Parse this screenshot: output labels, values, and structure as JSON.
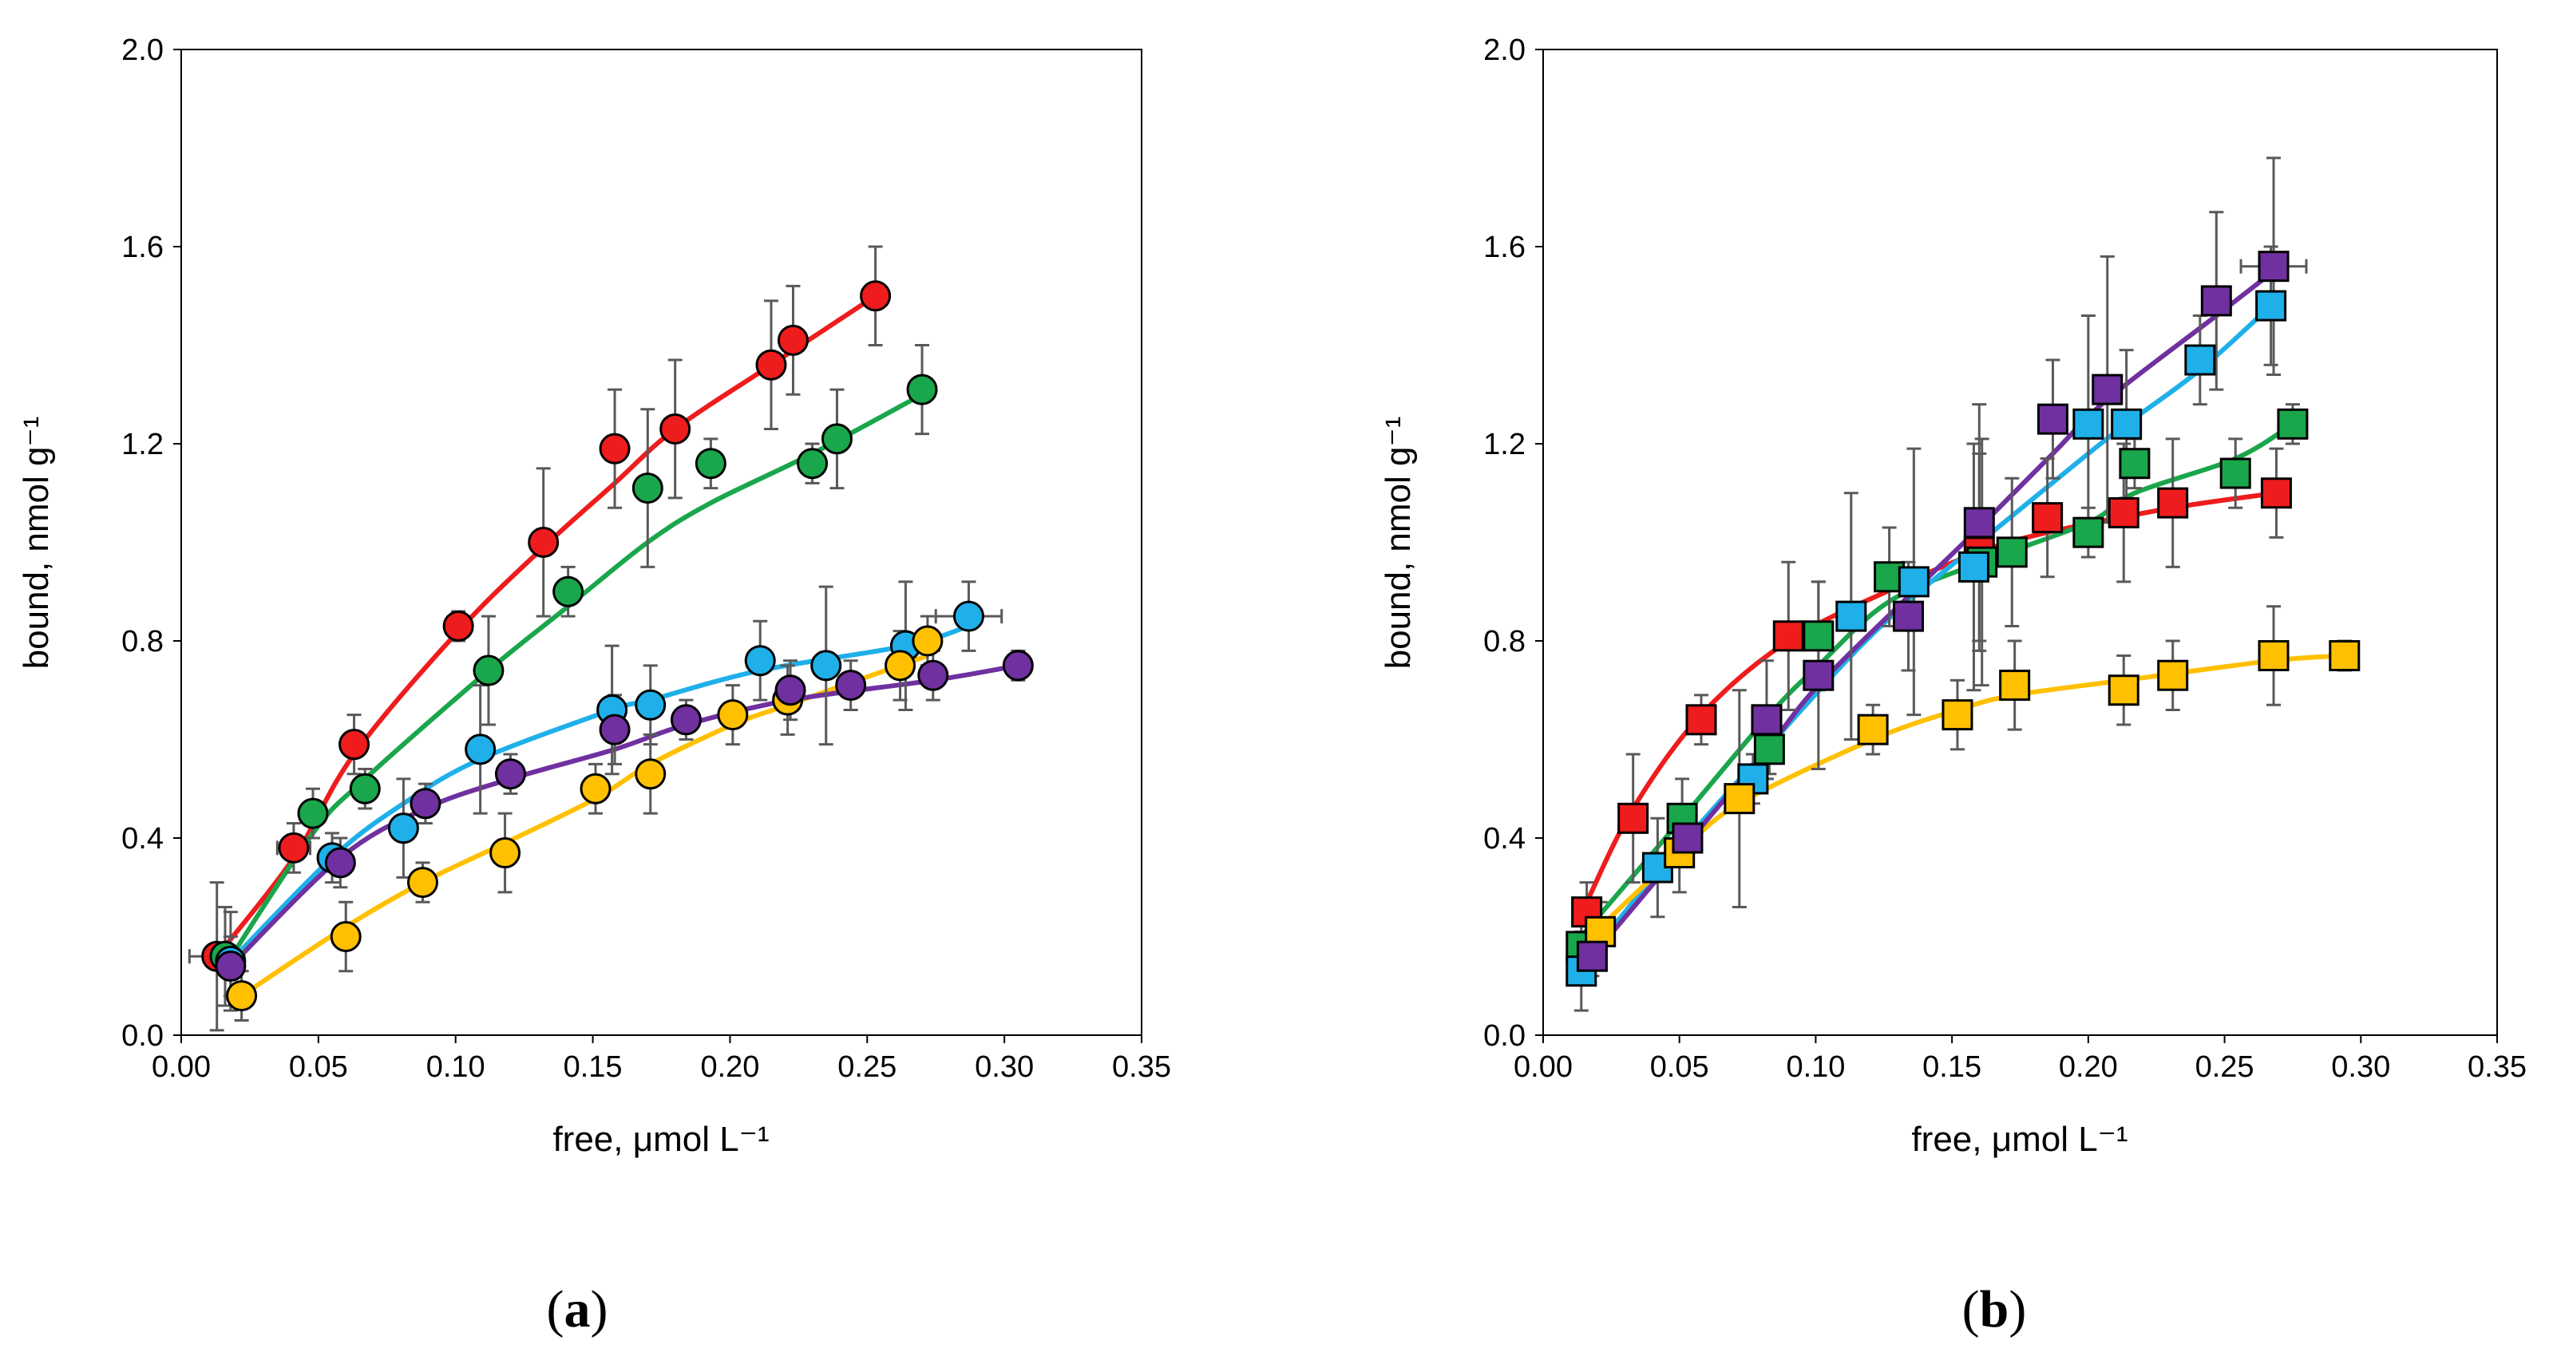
{
  "colors": {
    "red": "#ee1c1c",
    "green": "#1aa64b",
    "blue": "#1fb0ea",
    "purple": "#7030a0",
    "yellow": "#ffc000",
    "errorbar": "#595959"
  },
  "chart_data": [
    {
      "id": "a",
      "type": "scatter",
      "marker": "circle",
      "panel_label": "(a)",
      "panel_letter": "a",
      "xlabel": "free, μmol L⁻¹",
      "ylabel": "bound, nmol g⁻¹",
      "xlim": [
        0,
        0.35
      ],
      "ylim": [
        0,
        2.0
      ],
      "xticks": [
        "0.00",
        "0.05",
        "0.10",
        "0.15",
        "0.20",
        "0.25",
        "0.30",
        "0.35"
      ],
      "yticks": [
        "0.0",
        "0.4",
        "0.8",
        "1.2",
        "1.6",
        "2.0"
      ],
      "series": [
        {
          "name": "red",
          "color": "#ee1c1c",
          "points": [
            [
              0.013,
              0.16,
              0.01,
              0.15
            ],
            [
              0.041,
              0.38,
              0.006,
              0.05
            ],
            [
              0.063,
              0.59,
              0,
              0.06
            ],
            [
              0.101,
              0.83,
              0,
              0.03
            ],
            [
              0.132,
              1.0,
              0,
              0.15
            ],
            [
              0.158,
              1.19,
              0,
              0.12
            ],
            [
              0.18,
              1.23,
              0,
              0.14
            ],
            [
              0.215,
              1.36,
              0,
              0.13
            ],
            [
              0.223,
              1.41,
              0,
              0.11
            ],
            [
              0.253,
              1.5,
              0,
              0.1
            ]
          ],
          "curve": [
            [
              0.013,
              0.16
            ],
            [
              0.041,
              0.36
            ],
            [
              0.063,
              0.57
            ],
            [
              0.101,
              0.82
            ],
            [
              0.132,
              0.99
            ],
            [
              0.158,
              1.12
            ],
            [
              0.18,
              1.23
            ],
            [
              0.215,
              1.36
            ],
            [
              0.253,
              1.5
            ]
          ]
        },
        {
          "name": "green",
          "color": "#1aa64b",
          "points": [
            [
              0.016,
              0.16,
              0,
              0.1
            ],
            [
              0.048,
              0.45,
              0,
              0.05
            ],
            [
              0.067,
              0.5,
              0,
              0.04
            ],
            [
              0.112,
              0.74,
              0,
              0.11
            ],
            [
              0.141,
              0.9,
              0,
              0.05
            ],
            [
              0.17,
              1.11,
              0,
              0.16
            ],
            [
              0.193,
              1.16,
              0,
              0.05
            ],
            [
              0.23,
              1.16,
              0,
              0.04
            ],
            [
              0.239,
              1.21,
              0,
              0.1
            ],
            [
              0.27,
              1.31,
              0,
              0.09
            ]
          ],
          "curve": [
            [
              0.016,
              0.14
            ],
            [
              0.048,
              0.41
            ],
            [
              0.067,
              0.52
            ],
            [
              0.112,
              0.74
            ],
            [
              0.141,
              0.87
            ],
            [
              0.17,
              1.0
            ],
            [
              0.193,
              1.08
            ],
            [
              0.23,
              1.18
            ],
            [
              0.27,
              1.3
            ]
          ]
        },
        {
          "name": "blue",
          "color": "#1fb0ea",
          "points": [
            [
              0.018,
              0.15,
              0,
              0.1
            ],
            [
              0.055,
              0.36,
              0,
              0.05
            ],
            [
              0.081,
              0.42,
              0,
              0.1
            ],
            [
              0.109,
              0.58,
              0,
              0.13
            ],
            [
              0.157,
              0.66,
              0,
              0.13
            ],
            [
              0.171,
              0.67,
              0,
              0.08
            ],
            [
              0.211,
              0.76,
              0,
              0.08
            ],
            [
              0.235,
              0.75,
              0,
              0.16
            ],
            [
              0.264,
              0.79,
              0,
              0.13
            ],
            [
              0.287,
              0.85,
              0.012,
              0.07
            ]
          ],
          "curve": [
            [
              0.018,
              0.15
            ],
            [
              0.055,
              0.36
            ],
            [
              0.081,
              0.47
            ],
            [
              0.109,
              0.56
            ],
            [
              0.157,
              0.66
            ],
            [
              0.171,
              0.68
            ],
            [
              0.211,
              0.74
            ],
            [
              0.264,
              0.79
            ],
            [
              0.287,
              0.83
            ]
          ]
        },
        {
          "name": "yellow",
          "color": "#ffc000",
          "points": [
            [
              0.022,
              0.08,
              0,
              0.05
            ],
            [
              0.06,
              0.2,
              0,
              0.07
            ],
            [
              0.088,
              0.31,
              0,
              0.04
            ],
            [
              0.118,
              0.37,
              0,
              0.08
            ],
            [
              0.151,
              0.5,
              0,
              0.05
            ],
            [
              0.171,
              0.53,
              0,
              0.08
            ],
            [
              0.201,
              0.65,
              0,
              0.06
            ],
            [
              0.221,
              0.68,
              0,
              0.07
            ],
            [
              0.262,
              0.75,
              0,
              0.07
            ],
            [
              0.272,
              0.8,
              0,
              0.05
            ]
          ],
          "curve": [
            [
              0.022,
              0.08
            ],
            [
              0.06,
              0.22
            ],
            [
              0.088,
              0.31
            ],
            [
              0.118,
              0.39
            ],
            [
              0.151,
              0.48
            ],
            [
              0.171,
              0.55
            ],
            [
              0.201,
              0.63
            ],
            [
              0.221,
              0.67
            ],
            [
              0.272,
              0.77
            ]
          ]
        },
        {
          "name": "purple",
          "color": "#7030a0",
          "points": [
            [
              0.018,
              0.14,
              0,
              0.06
            ],
            [
              0.058,
              0.35,
              0,
              0.05
            ],
            [
              0.089,
              0.47,
              0,
              0.04
            ],
            [
              0.12,
              0.53,
              0,
              0.04
            ],
            [
              0.158,
              0.62,
              0,
              0.07
            ],
            [
              0.184,
              0.64,
              0,
              0.04
            ],
            [
              0.222,
              0.7,
              0,
              0.06
            ],
            [
              0.244,
              0.71,
              0,
              0.05
            ],
            [
              0.274,
              0.73,
              0,
              0.05
            ],
            [
              0.305,
              0.75,
              0,
              0.03
            ]
          ],
          "curve": [
            [
              0.018,
              0.14
            ],
            [
              0.058,
              0.36
            ],
            [
              0.089,
              0.46
            ],
            [
              0.12,
              0.52
            ],
            [
              0.158,
              0.58
            ],
            [
              0.184,
              0.63
            ],
            [
              0.222,
              0.68
            ],
            [
              0.274,
              0.72
            ],
            [
              0.305,
              0.75
            ]
          ]
        }
      ]
    },
    {
      "id": "b",
      "type": "scatter",
      "marker": "square",
      "panel_label": "(b)",
      "panel_letter": "b",
      "xlabel": "free, μmol L⁻¹",
      "ylabel": "bound, nmol g⁻¹",
      "xlim": [
        0,
        0.35
      ],
      "ylim": [
        0,
        2.0
      ],
      "xticks": [
        "0.00",
        "0.05",
        "0.10",
        "0.15",
        "0.20",
        "0.25",
        "0.30",
        "0.35"
      ],
      "yticks": [
        "0.0",
        "0.4",
        "0.8",
        "1.2",
        "1.6",
        "2.0"
      ],
      "series": [
        {
          "name": "red",
          "color": "#ee1c1c",
          "points": [
            [
              0.016,
              0.25,
              0,
              0.06
            ],
            [
              0.033,
              0.44,
              0,
              0.13
            ],
            [
              0.058,
              0.64,
              0,
              0.05
            ],
            [
              0.09,
              0.81,
              0,
              0.15
            ],
            [
              0.16,
              0.98,
              0,
              0.2
            ],
            [
              0.185,
              1.05,
              0,
              0.12
            ],
            [
              0.213,
              1.06,
              0,
              0.14
            ],
            [
              0.231,
              1.08,
              0,
              0.13
            ],
            [
              0.269,
              1.1,
              0,
              0.09
            ]
          ],
          "curve": [
            [
              0.016,
              0.27
            ],
            [
              0.033,
              0.46
            ],
            [
              0.058,
              0.65
            ],
            [
              0.09,
              0.8
            ],
            [
              0.13,
              0.91
            ],
            [
              0.16,
              0.98
            ],
            [
              0.185,
              1.02
            ],
            [
              0.231,
              1.07
            ],
            [
              0.269,
              1.1
            ]
          ]
        },
        {
          "name": "green",
          "color": "#1aa64b",
          "points": [
            [
              0.014,
              0.18,
              0,
              0.05
            ],
            [
              0.051,
              0.44,
              0,
              0.08
            ],
            [
              0.083,
              0.58,
              0,
              0.05
            ],
            [
              0.101,
              0.81,
              0,
              0.11
            ],
            [
              0.127,
              0.93,
              0,
              0.1
            ],
            [
              0.161,
              0.96,
              0,
              0.25
            ],
            [
              0.172,
              0.98,
              0,
              0.15
            ],
            [
              0.2,
              1.02,
              0,
              0.05
            ],
            [
              0.217,
              1.16,
              0,
              0.05
            ],
            [
              0.254,
              1.14,
              0,
              0.07
            ],
            [
              0.275,
              1.24,
              0,
              0.04
            ]
          ],
          "curve": [
            [
              0.014,
              0.2
            ],
            [
              0.051,
              0.44
            ],
            [
              0.083,
              0.65
            ],
            [
              0.101,
              0.75
            ],
            [
              0.127,
              0.88
            ],
            [
              0.161,
              0.96
            ],
            [
              0.2,
              1.04
            ],
            [
              0.217,
              1.1
            ],
            [
              0.254,
              1.17
            ],
            [
              0.275,
              1.24
            ]
          ]
        },
        {
          "name": "blue",
          "color": "#1fb0ea",
          "points": [
            [
              0.014,
              0.13,
              0,
              0.08
            ],
            [
              0.042,
              0.34,
              0,
              0.1
            ],
            [
              0.077,
              0.52,
              0,
              0.05
            ],
            [
              0.113,
              0.85,
              0,
              0.25
            ],
            [
              0.136,
              0.92,
              0,
              0.27
            ],
            [
              0.158,
              0.95,
              0,
              0.25
            ],
            [
              0.2,
              1.24,
              0,
              0.22
            ],
            [
              0.214,
              1.24,
              0,
              0.15
            ],
            [
              0.241,
              1.37,
              0,
              0.09
            ],
            [
              0.267,
              1.48,
              0,
              0.12
            ]
          ],
          "curve": [
            [
              0.014,
              0.14
            ],
            [
              0.042,
              0.33
            ],
            [
              0.077,
              0.55
            ],
            [
              0.113,
              0.77
            ],
            [
              0.136,
              0.89
            ],
            [
              0.158,
              0.99
            ],
            [
              0.2,
              1.18
            ],
            [
              0.214,
              1.24
            ],
            [
              0.241,
              1.35
            ],
            [
              0.267,
              1.48
            ]
          ]
        },
        {
          "name": "yellow",
          "color": "#ffc000",
          "points": [
            [
              0.021,
              0.21,
              0,
              0.06
            ],
            [
              0.05,
              0.37,
              0,
              0.08
            ],
            [
              0.072,
              0.48,
              0,
              0.22
            ],
            [
              0.121,
              0.62,
              0,
              0.05
            ],
            [
              0.152,
              0.65,
              0,
              0.07
            ],
            [
              0.173,
              0.71,
              0,
              0.09
            ],
            [
              0.213,
              0.7,
              0,
              0.07
            ],
            [
              0.231,
              0.73,
              0,
              0.07
            ],
            [
              0.268,
              0.77,
              0,
              0.1
            ],
            [
              0.294,
              0.77,
              0,
              0.03
            ]
          ],
          "curve": [
            [
              0.021,
              0.22
            ],
            [
              0.05,
              0.37
            ],
            [
              0.072,
              0.47
            ],
            [
              0.121,
              0.6
            ],
            [
              0.152,
              0.66
            ],
            [
              0.173,
              0.69
            ],
            [
              0.213,
              0.72
            ],
            [
              0.268,
              0.76
            ],
            [
              0.294,
              0.77
            ]
          ]
        },
        {
          "name": "purple",
          "color": "#7030a0",
          "points": [
            [
              0.018,
              0.16,
              0,
              0.04
            ],
            [
              0.053,
              0.4,
              0,
              0.05
            ],
            [
              0.082,
              0.64,
              0,
              0.12
            ],
            [
              0.101,
              0.73,
              0,
              0.19
            ],
            [
              0.134,
              0.85,
              0,
              0.11
            ],
            [
              0.16,
              1.04,
              0,
              0.24
            ],
            [
              0.187,
              1.25,
              0,
              0.12
            ],
            [
              0.207,
              1.31,
              0,
              0.27
            ],
            [
              0.247,
              1.49,
              0,
              0.18
            ],
            [
              0.268,
              1.56,
              0.012,
              0.22
            ]
          ],
          "curve": [
            [
              0.018,
              0.16
            ],
            [
              0.053,
              0.39
            ],
            [
              0.082,
              0.58
            ],
            [
              0.101,
              0.71
            ],
            [
              0.134,
              0.89
            ],
            [
              0.16,
              1.03
            ],
            [
              0.187,
              1.18
            ],
            [
              0.207,
              1.29
            ],
            [
              0.247,
              1.46
            ],
            [
              0.268,
              1.55
            ]
          ]
        }
      ]
    }
  ]
}
